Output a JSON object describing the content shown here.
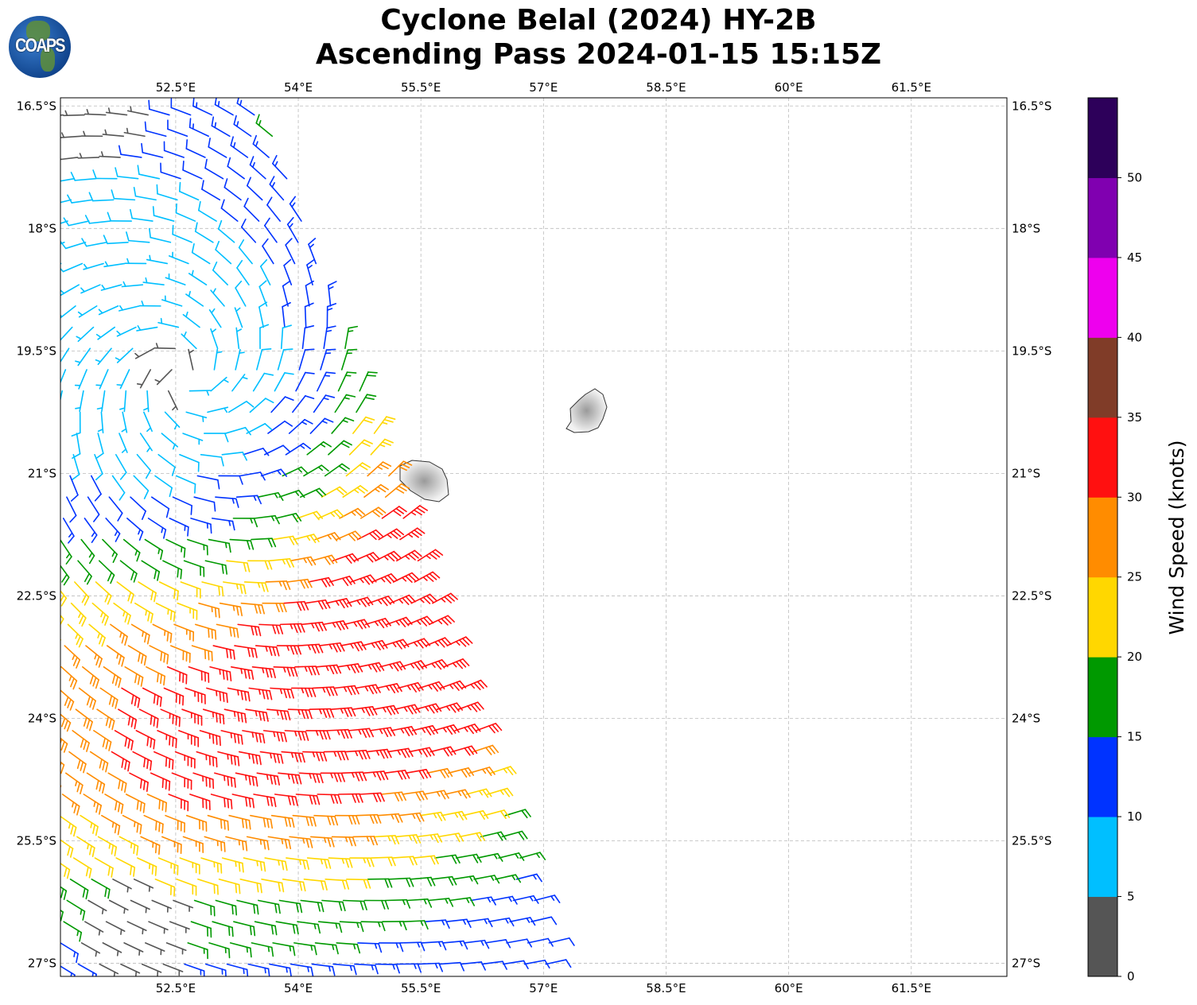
{
  "title": {
    "line1": "Cyclone Belal (2024) HY-2B",
    "line2": "Ascending Pass 2024-01-15 15:15Z"
  },
  "logo": {
    "text": "COAPS"
  },
  "chart_data": {
    "type": "map",
    "extent": {
      "lon": [
        51.09,
        62.67
      ],
      "lat": [
        -27.16,
        -16.4
      ]
    },
    "x_ticks": [
      {
        "v": 52.5,
        "label": "52.5°E"
      },
      {
        "v": 54,
        "label": "54°E"
      },
      {
        "v": 55.5,
        "label": "55.5°E"
      },
      {
        "v": 57,
        "label": "57°E"
      },
      {
        "v": 58.5,
        "label": "58.5°E"
      },
      {
        "v": 60,
        "label": "60°E"
      },
      {
        "v": 61.5,
        "label": "61.5°E"
      }
    ],
    "y_ticks": [
      {
        "v": 16.5,
        "label": "16.5°S"
      },
      {
        "v": 18,
        "label": "18°S"
      },
      {
        "v": 19.5,
        "label": "19.5°S"
      },
      {
        "v": 21,
        "label": "21°S"
      },
      {
        "v": 22.5,
        "label": "22.5°S"
      },
      {
        "v": 24,
        "label": "24°S"
      },
      {
        "v": 25.5,
        "label": "25.5°S"
      },
      {
        "v": 27,
        "label": "27°S"
      }
    ],
    "grid": true,
    "swath_east_edge": [
      {
        "lat": -16.4,
        "lon": 53.57
      },
      {
        "lat": -27.16,
        "lon": 57.26
      }
    ],
    "cyclone_center": {
      "lon": 52.6,
      "lat": -19.8
    },
    "max_wind_region": {
      "lon": 55.8,
      "lat": -22.7,
      "speed_kt": 33
    },
    "islands": [
      {
        "name": "Reunion",
        "lon": 55.5,
        "lat": -21.1
      },
      {
        "name": "Mauritius",
        "lon": 57.6,
        "lat": -20.25
      }
    ],
    "colorbar": {
      "label": "Wind Speed (knots)",
      "bounds": [
        0,
        5,
        10,
        15,
        20,
        25,
        30,
        35,
        40,
        45,
        50,
        55
      ],
      "colors": [
        "#555555",
        "#00bfff",
        "#0033ff",
        "#009900",
        "#ffd700",
        "#ff8c00",
        "#ff1010",
        "#803c28",
        "#ee00ee",
        "#8000b0",
        "#2d005a"
      ],
      "tick_labels": [
        "0",
        "5",
        "10",
        "15",
        "20",
        "25",
        "30",
        "35",
        "40",
        "45",
        "50"
      ]
    }
  }
}
